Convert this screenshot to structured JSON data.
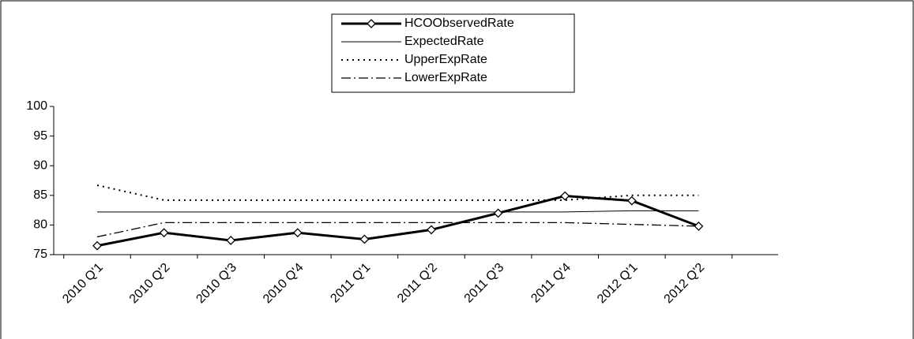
{
  "chart_data": {
    "type": "line",
    "categories": [
      "2010 Q'1",
      "2010 Q'2",
      "2010 Q'3",
      "2010 Q'4",
      "2011 Q'1",
      "2011 Q'2",
      "2011 Q'3",
      "2011 Q'4",
      "2012 Q'1",
      "2012 Q'2"
    ],
    "series": [
      {
        "name": "HCOObservedRate",
        "color": "#000000",
        "width": 3,
        "dash": "none",
        "marker": "diamond",
        "values": [
          76.5,
          78.7,
          77.4,
          78.7,
          77.6,
          79.2,
          82.0,
          84.9,
          84.1,
          79.8
        ]
      },
      {
        "name": "ExpectedRate",
        "color": "#000000",
        "width": 1,
        "dash": "none",
        "marker": "none",
        "values": [
          82.2,
          82.2,
          82.2,
          82.2,
          82.2,
          82.2,
          82.2,
          82.2,
          82.4,
          82.4
        ]
      },
      {
        "name": "UpperExpRate",
        "color": "#000000",
        "width": 2,
        "dash": "2 5",
        "marker": "none",
        "values": [
          86.7,
          84.2,
          84.2,
          84.2,
          84.2,
          84.2,
          84.2,
          84.2,
          85.0,
          85.0
        ]
      },
      {
        "name": "LowerExpRate",
        "color": "#000000",
        "width": 1.3,
        "dash": "12 4 2 4",
        "marker": "none",
        "values": [
          78.0,
          80.4,
          80.4,
          80.4,
          80.4,
          80.4,
          80.4,
          80.4,
          80.1,
          79.8
        ]
      }
    ],
    "ylim": [
      75,
      100
    ],
    "yticks": [
      75,
      80,
      85,
      90,
      95,
      100
    ],
    "grid": false,
    "legend": "top"
  }
}
